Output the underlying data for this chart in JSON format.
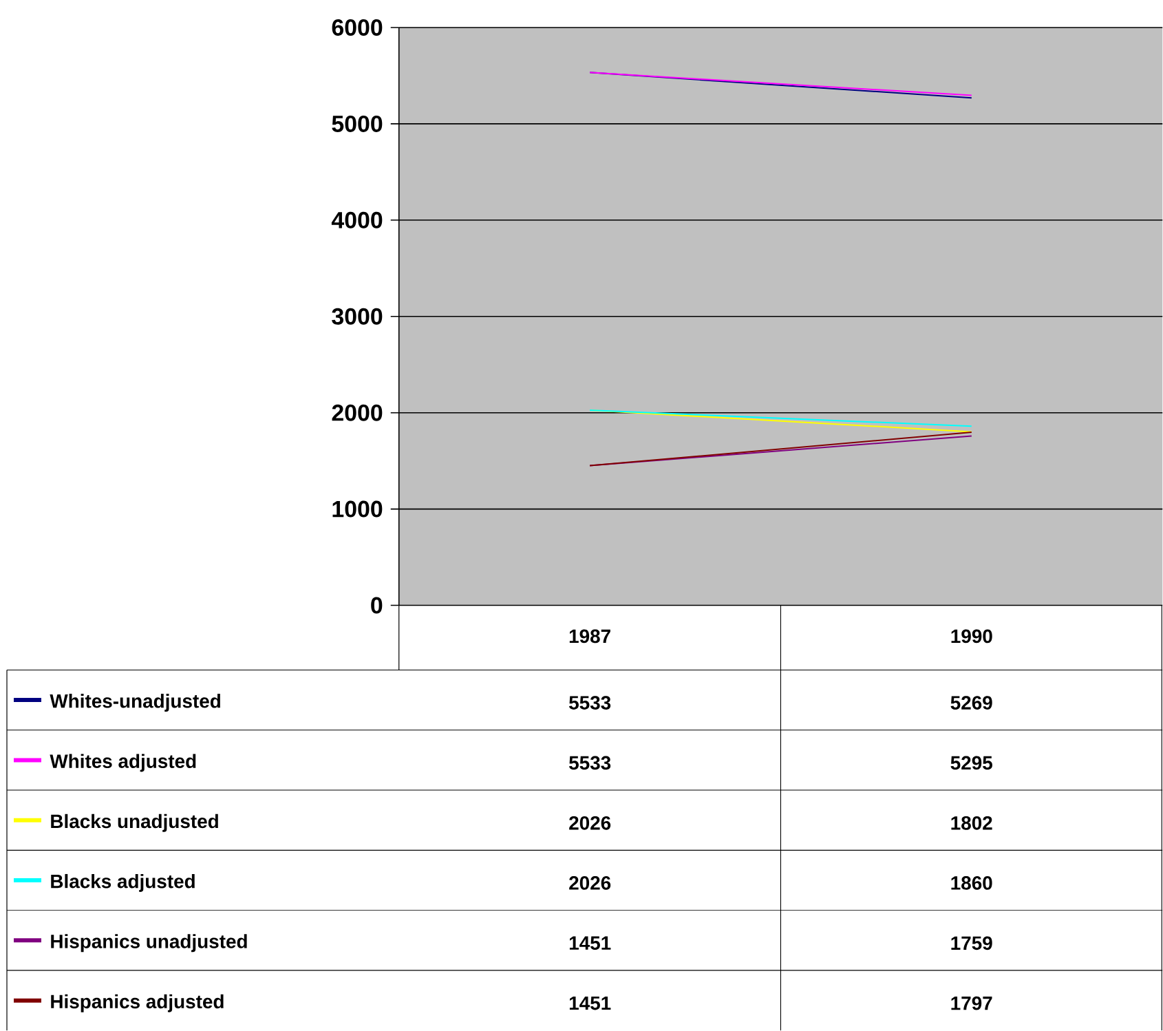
{
  "chart_data": {
    "type": "line",
    "categories": [
      "1987",
      "1990"
    ],
    "series": [
      {
        "name": "Whites-unadjusted",
        "color": "#000080",
        "values": [
          5533,
          5269
        ]
      },
      {
        "name": "Whites adjusted",
        "color": "#ff00ff",
        "values": [
          5533,
          5295
        ]
      },
      {
        "name": "Blacks unadjusted",
        "color": "#ffff00",
        "values": [
          2026,
          1802
        ]
      },
      {
        "name": "Blacks adjusted",
        "color": "#00ffff",
        "values": [
          2026,
          1860
        ]
      },
      {
        "name": "Hispanics unadjusted",
        "color": "#800080",
        "values": [
          1451,
          1759
        ]
      },
      {
        "name": "Hispanics adjusted",
        "color": "#800000",
        "values": [
          1451,
          1797
        ]
      }
    ],
    "ylim": [
      0,
      6000
    ],
    "yticks": [
      0,
      1000,
      2000,
      3000,
      4000,
      5000,
      6000
    ],
    "grid": "y",
    "legend": "bottom left",
    "data_labels": true,
    "marker": "none",
    "line_style": "solid"
  }
}
